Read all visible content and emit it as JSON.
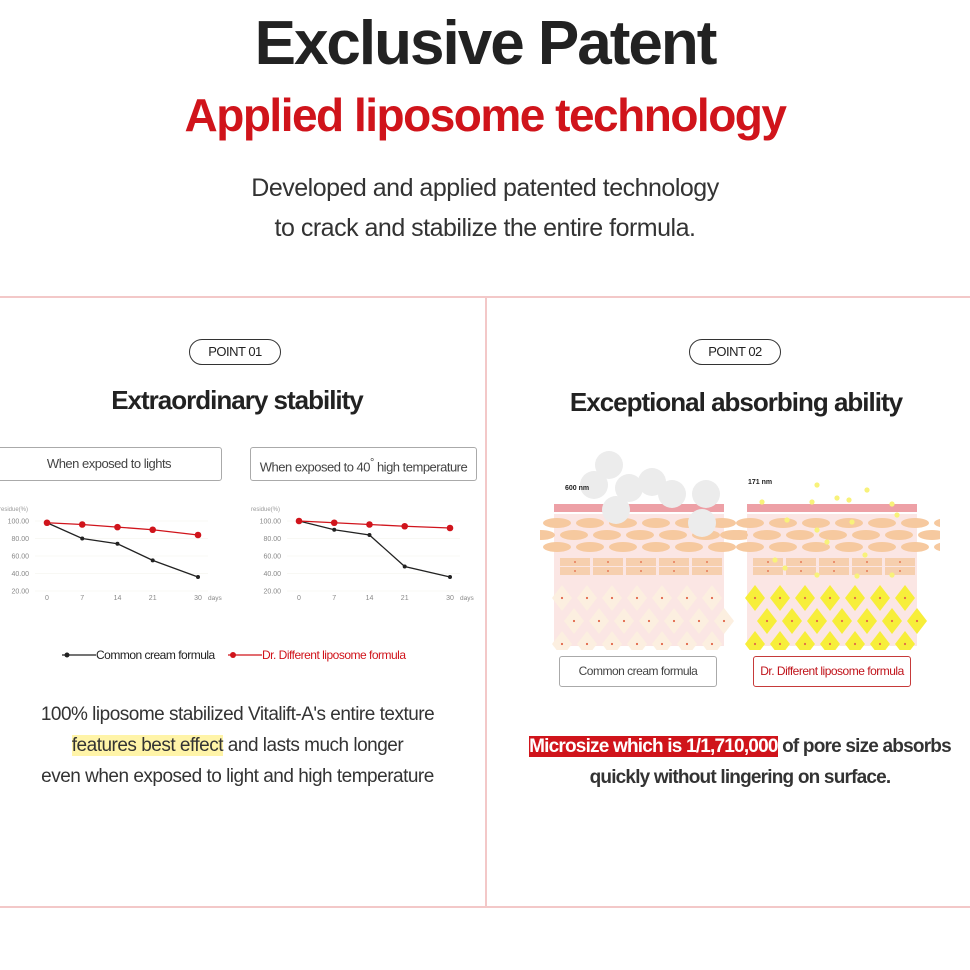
{
  "header": {
    "title": "Exclusive Patent",
    "subtitle": "Applied liposome technology",
    "description_line1": "Developed and applied patented technology",
    "description_line2": "to crack and stabilize the entire formula."
  },
  "point1": {
    "badge": "POINT 01",
    "title": "Extraordinary stability",
    "chart1_label": "When exposed to lights",
    "chart2_label_pre": "When exposed to 40",
    "chart2_label_sup": "°",
    "chart2_label_post": " high temperature",
    "legend_common": "Common cream formula",
    "legend_liposome": "Dr. Different liposome formula",
    "text_line1": "100% liposome stabilized Vitalift-A's entire texture",
    "text_highlight": "features best effect",
    "text_line2_rest": " and lasts much longer",
    "text_line3": "even when exposed to light and high temperature"
  },
  "point2": {
    "badge": "POINT 02",
    "title": "Exceptional absorbing ability",
    "size_common": "600 nm",
    "size_liposome": "171 nm",
    "label_common": "Common cream formula",
    "label_liposome": "Dr. Different liposome formula",
    "text_highlight": "Microsize which is 1/1,710,000",
    "text_line1_rest": " of pore size absorbs",
    "text_line2": "quickly without lingering on surface."
  },
  "colors": {
    "accent": "#d0141b",
    "common": "#222222",
    "border": "#f3c8c8"
  },
  "chart_data": [
    {
      "type": "line",
      "ylabel": "residue(%)",
      "xlabel": "days",
      "x": [
        0,
        7,
        14,
        21,
        30
      ],
      "yticks": [
        "100.00",
        "80.00",
        "60.00",
        "40.00",
        "20.00"
      ],
      "ylim": [
        20,
        100
      ],
      "series": [
        {
          "name": "Common cream formula",
          "values": [
            98,
            80,
            74,
            55,
            36
          ],
          "color": "#222222"
        },
        {
          "name": "Dr. Different liposome formula",
          "values": [
            98,
            96,
            93,
            90,
            84
          ],
          "color": "#d0141b"
        }
      ]
    },
    {
      "type": "line",
      "ylabel": "residue(%)",
      "xlabel": "days",
      "x": [
        0,
        7,
        14,
        21,
        30
      ],
      "yticks": [
        "100.00",
        "80.00",
        "60.00",
        "40.00",
        "20.00"
      ],
      "ylim": [
        20,
        100
      ],
      "series": [
        {
          "name": "Common cream formula",
          "values": [
            100,
            90,
            84,
            48,
            36
          ],
          "color": "#222222"
        },
        {
          "name": "Dr. Different liposome formula",
          "values": [
            100,
            98,
            96,
            94,
            92
          ],
          "color": "#d0141b"
        }
      ]
    }
  ]
}
